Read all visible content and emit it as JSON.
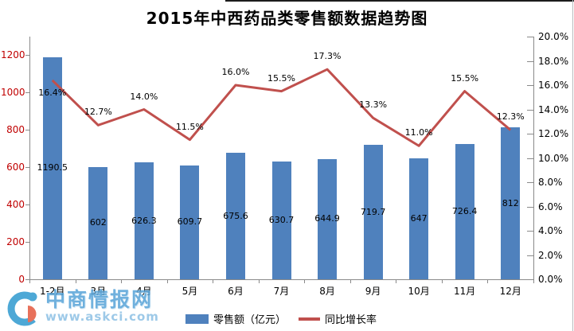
{
  "title": "2015年中西药品类零售额数据趋势图",
  "legend": {
    "bar_label": "零售额（亿元）",
    "line_label": "同比增长率"
  },
  "watermark": {
    "name": "中商情报网",
    "url": "www.askci.com"
  },
  "colors": {
    "bar": "#4f81bd",
    "line": "#c0504d",
    "left_axis_label": "#c00000",
    "right_axis_label": "#000000",
    "axis_line": "#8a8a8a"
  },
  "chart_data": {
    "type": "bar",
    "title": "2015年中西药品类零售额数据趋势图",
    "categories": [
      "1-2月",
      "3月",
      "4月",
      "5月",
      "6月",
      "7月",
      "8月",
      "9月",
      "10月",
      "11月",
      "12月"
    ],
    "series": [
      {
        "name": "零售额（亿元）",
        "type": "bar",
        "axis": "left",
        "color": "#4f81bd",
        "values": [
          1190.5,
          602,
          626.3,
          609.7,
          675.6,
          630.7,
          644.9,
          719.7,
          647,
          726.4,
          812
        ],
        "labels": [
          "1190.5",
          "602",
          "626.3",
          "609.7",
          "675.6",
          "630.7",
          "644.9",
          "719.7",
          "647",
          "726.4",
          "812"
        ]
      },
      {
        "name": "同比增长率",
        "type": "line",
        "axis": "right",
        "color": "#c0504d",
        "values": [
          16.4,
          12.7,
          14.0,
          11.5,
          16.0,
          15.5,
          17.3,
          13.3,
          11.0,
          15.5,
          12.3
        ],
        "labels": [
          "16.4%",
          "12.7%",
          "14.0%",
          "11.5%",
          "16.0%",
          "15.5%",
          "17.3%",
          "13.3%",
          "11.0%",
          "15.5%",
          "12.3%"
        ],
        "label_placement": [
          "below",
          "above",
          "above",
          "above",
          "above",
          "above",
          "above",
          "above",
          "above",
          "above",
          "above"
        ]
      }
    ],
    "left_axis": {
      "min": 0,
      "max": 1300,
      "tick_values": [
        0,
        200,
        400,
        600,
        800,
        1000,
        1200
      ]
    },
    "right_axis": {
      "min": 0,
      "max": 20,
      "tick_values": [
        0,
        2,
        4,
        6,
        8,
        10,
        12,
        14,
        16,
        18,
        20
      ],
      "tick_labels": [
        "0.0%",
        "2.0%",
        "4.0%",
        "6.0%",
        "8.0%",
        "10.0%",
        "12.0%",
        "14.0%",
        "16.0%",
        "18.0%",
        "20.0%"
      ]
    },
    "grid": "off",
    "legend_position": "bottom"
  }
}
